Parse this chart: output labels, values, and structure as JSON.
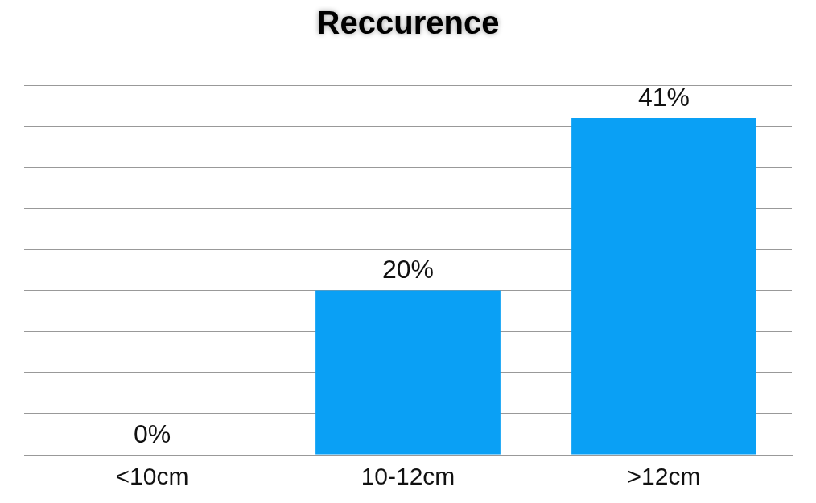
{
  "chart_data": {
    "type": "bar",
    "title": "Reccurence",
    "categories": [
      "<10cm",
      "10-12cm",
      ">12cm"
    ],
    "values": [
      0,
      20,
      41
    ],
    "value_labels": [
      "0%",
      "20%",
      "41%"
    ],
    "color": "#0aa0f5",
    "grid": "y",
    "tick_labels": "x"
  }
}
